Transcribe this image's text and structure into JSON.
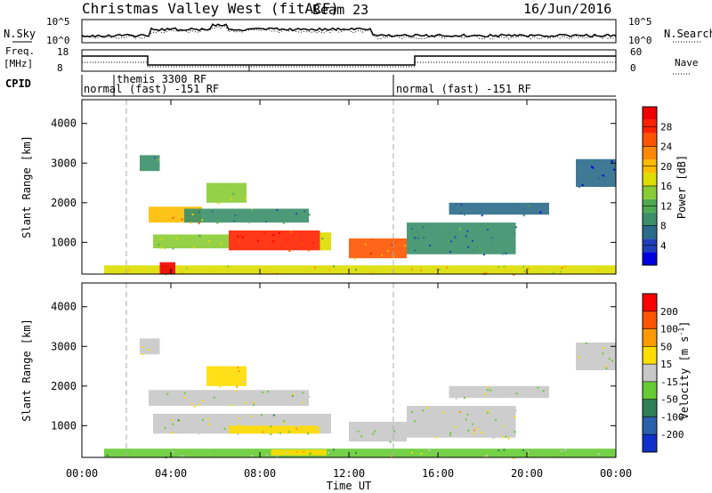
{
  "header": {
    "title": "Christmas Valley West (fitACF)",
    "beam": "Beam 23",
    "date": "16/Jun/2016"
  },
  "strips": {
    "nsky_label": "N.Sky",
    "nsearch_label": "N.Search",
    "nsky_ticks": [
      "10^5",
      "10^0"
    ],
    "freq_label": "Freq.",
    "freq_unit": "[MHz]",
    "freq_ticks": [
      "18",
      "8"
    ],
    "nave_label": "Nave",
    "nave_ticks": [
      "60",
      "0"
    ],
    "cpid_label": "CPID",
    "cpid_segments": [
      {
        "start_hour": 0,
        "end_hour": 2,
        "text": "normal"
      },
      {
        "start_hour": 2,
        "end_hour": 14,
        "text": "themis 3300 RF",
        "text2": "(fast) -151 RF"
      },
      {
        "start_hour": 14,
        "end_hour": 24,
        "text": "normal (fast) -151 RF"
      }
    ]
  },
  "axes": {
    "xlabel": "Time UT",
    "ylabel": "Slant Range [km]",
    "x_tick_labels": [
      "00:00",
      "04:00",
      "08:00",
      "12:00",
      "16:00",
      "20:00",
      "00:00"
    ],
    "y_tick_labels": [
      "1000",
      "2000",
      "3000",
      "4000"
    ]
  },
  "power_colorbar": {
    "label": "Power [dB]",
    "ticks": [
      "28",
      "24",
      "20",
      "16",
      "12",
      "8",
      "4"
    ],
    "colors": [
      "#0000dd",
      "#1f3fb8",
      "#2a6a8a",
      "#3a8f6a",
      "#4faa4f",
      "#88cc33",
      "#dddd00",
      "#ffbb00",
      "#ff8800",
      "#ff5500",
      "#ff2200",
      "#ee0000"
    ]
  },
  "velocity_colorbar": {
    "label": "Velocity [m s",
    "label_sup": "-1",
    "label_end": "]",
    "ticks": [
      "200",
      "100",
      "50",
      "15",
      "-15",
      "-50",
      "-100",
      "-200"
    ],
    "colors": [
      "#1030cc",
      "#2a60aa",
      "#2f7f55",
      "#66cc33",
      "#c8c8c8",
      "#ffdd00",
      "#ff9900",
      "#ff5500",
      "#ff0000"
    ]
  },
  "chart_data": [
    {
      "type": "heatmap",
      "title": "Power",
      "xlabel": "Time UT",
      "ylabel": "Slant Range [km]",
      "xlim": [
        0,
        24
      ],
      "ylim": [
        200,
        4600
      ],
      "x_ticks_hours": [
        0,
        4,
        8,
        12,
        16,
        20,
        24
      ],
      "y_ticks": [
        1000,
        2000,
        3000,
        4000
      ],
      "value_unit": "dB",
      "value_range": [
        0,
        32
      ],
      "regions": [
        {
          "t0": 3.2,
          "t1": 6.6,
          "r0": 850,
          "r1": 1200,
          "value": 14
        },
        {
          "t0": 6.6,
          "t1": 10.7,
          "r0": 800,
          "r1": 1300,
          "value": 28
        },
        {
          "t0": 10.7,
          "t1": 11.2,
          "r0": 800,
          "r1": 1250,
          "value": 18
        },
        {
          "t0": 12.0,
          "t1": 14.6,
          "r0": 600,
          "r1": 1100,
          "value": 24
        },
        {
          "t0": 14.6,
          "t1": 19.5,
          "r0": 700,
          "r1": 1500,
          "value": 8
        },
        {
          "t0": 3.0,
          "t1": 5.4,
          "r0": 1500,
          "r1": 1900,
          "value": 20
        },
        {
          "t0": 4.6,
          "t1": 10.2,
          "r0": 1500,
          "r1": 1850,
          "value": 10
        },
        {
          "t0": 5.6,
          "t1": 7.4,
          "r0": 2000,
          "r1": 2500,
          "value": 14
        },
        {
          "t0": 2.6,
          "t1": 3.5,
          "r0": 2800,
          "r1": 3200,
          "value": 10
        },
        {
          "t0": 16.5,
          "t1": 21.0,
          "r0": 1700,
          "r1": 2000,
          "value": 6
        },
        {
          "t0": 22.2,
          "t1": 24.0,
          "r0": 2400,
          "r1": 3100,
          "value": 6
        },
        {
          "t0": 1.0,
          "t1": 24.0,
          "r0": 200,
          "r1": 420,
          "value": 18
        },
        {
          "t0": 3.5,
          "t1": 4.2,
          "r0": 200,
          "r1": 500,
          "value": 30
        }
      ]
    },
    {
      "type": "heatmap",
      "title": "Velocity",
      "xlabel": "Time UT",
      "ylabel": "Slant Range [km]",
      "xlim": [
        0,
        24
      ],
      "ylim": [
        200,
        4600
      ],
      "x_ticks_hours": [
        0,
        4,
        8,
        12,
        16,
        20,
        24
      ],
      "y_ticks": [
        1000,
        2000,
        3000,
        4000
      ],
      "value_unit": "m s^-1",
      "value_range": [
        -200,
        200
      ],
      "regions": [
        {
          "t0": 3.2,
          "t1": 11.2,
          "r0": 800,
          "r1": 1300,
          "value": 0
        },
        {
          "t0": 6.6,
          "t1": 10.7,
          "r0": 800,
          "r1": 1000,
          "value": 30
        },
        {
          "t0": 12.0,
          "t1": 14.6,
          "r0": 600,
          "r1": 1100,
          "value": 0
        },
        {
          "t0": 14.6,
          "t1": 19.5,
          "r0": 700,
          "r1": 1500,
          "value": 0
        },
        {
          "t0": 3.0,
          "t1": 10.2,
          "r0": 1500,
          "r1": 1900,
          "value": 0
        },
        {
          "t0": 5.6,
          "t1": 7.4,
          "r0": 2000,
          "r1": 2500,
          "value": 40
        },
        {
          "t0": 2.6,
          "t1": 3.5,
          "r0": 2800,
          "r1": 3200,
          "value": 0
        },
        {
          "t0": 16.5,
          "t1": 21.0,
          "r0": 1700,
          "r1": 2000,
          "value": 0
        },
        {
          "t0": 22.2,
          "t1": 24.0,
          "r0": 2400,
          "r1": 3100,
          "value": 0
        },
        {
          "t0": 1.0,
          "t1": 24.0,
          "r0": 200,
          "r1": 420,
          "value": -30
        },
        {
          "t0": 8.5,
          "t1": 11.0,
          "r0": 250,
          "r1": 400,
          "value": 40
        }
      ]
    }
  ]
}
